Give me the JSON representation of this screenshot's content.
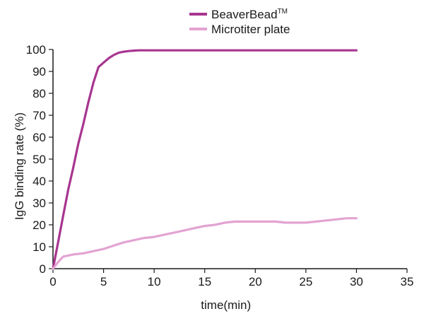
{
  "chart_data": {
    "type": "line",
    "title": "",
    "xlabel": "time(min)",
    "ylabel": "IgG binding rate (%)",
    "xlim": [
      0,
      35
    ],
    "ylim": [
      0,
      100
    ],
    "xticks": [
      0,
      5,
      10,
      15,
      20,
      25,
      30,
      35
    ],
    "yticks": [
      0,
      10,
      20,
      30,
      40,
      50,
      60,
      70,
      80,
      90,
      100
    ],
    "grid": false,
    "legend_position": "top-center",
    "series": [
      {
        "name": "BeaverBead",
        "name_superscript": "TM",
        "color": "#a8358f",
        "x": [
          0,
          0.5,
          1,
          1.5,
          2,
          2.5,
          3,
          3.5,
          4,
          4.5,
          5,
          5.5,
          6,
          6.5,
          7,
          7.5,
          8,
          8.5,
          10,
          15,
          20,
          25,
          30
        ],
        "y": [
          0,
          12,
          24,
          36,
          46,
          57,
          66,
          76,
          85,
          92,
          94,
          96,
          97.5,
          98.5,
          99,
          99.3,
          99.5,
          99.6,
          99.6,
          99.6,
          99.6,
          99.6,
          99.6
        ]
      },
      {
        "name": "Microtiter plate",
        "color": "#e3a3d3",
        "x": [
          0,
          0.5,
          1,
          2,
          3,
          4,
          5,
          6,
          7,
          8,
          9,
          10,
          11,
          12,
          13,
          14,
          15,
          16,
          17,
          18,
          19,
          20,
          21,
          22,
          23,
          24,
          25,
          26,
          27,
          28,
          29,
          30
        ],
        "y": [
          0,
          3,
          5.5,
          6.5,
          7,
          8,
          9,
          10.5,
          12,
          13,
          14,
          14.5,
          15.5,
          16.5,
          17.5,
          18.5,
          19.5,
          20,
          21,
          21.5,
          21.5,
          21.5,
          21.5,
          21.5,
          21,
          21,
          21,
          21.5,
          22,
          22.5,
          23,
          23
        ]
      }
    ]
  }
}
